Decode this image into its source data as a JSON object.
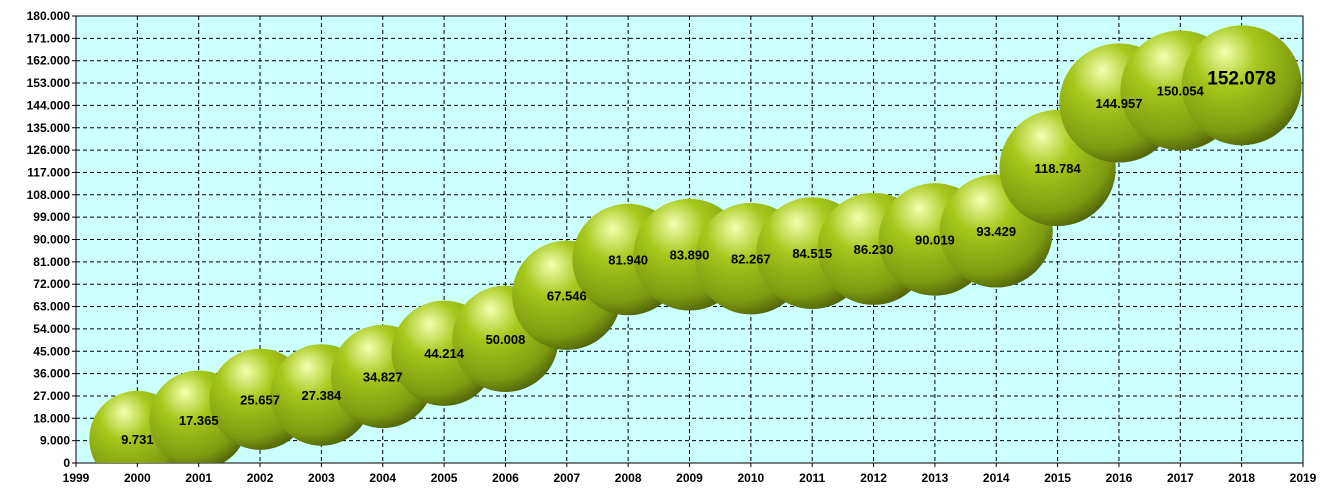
{
  "colors": {
    "plot_background": "#ccffff",
    "grid": "#000000",
    "bubble_light": "#f4ffb0",
    "bubble_mid": "#a6c81c",
    "bubble_dark": "#4b5e06"
  },
  "chart_data": {
    "type": "scatter",
    "style": "bubble",
    "title": "",
    "xlabel": "",
    "ylabel": "",
    "xlim": [
      1999,
      2019
    ],
    "ylim": [
      0,
      180000
    ],
    "grid": true,
    "legend": "none",
    "x_tick_labels": [
      "1999",
      "2000",
      "2001",
      "2002",
      "2003",
      "2004",
      "2005",
      "2006",
      "2007",
      "2008",
      "2009",
      "2010",
      "2011",
      "2012",
      "2013",
      "2014",
      "2015",
      "2016",
      "2017",
      "2018",
      "2019"
    ],
    "y_tick_labels": [
      "0",
      "9.000",
      "18.000",
      "27.000",
      "36.000",
      "45.000",
      "54.000",
      "63.000",
      "72.000",
      "81.000",
      "90.000",
      "99.000",
      "108.000",
      "117.000",
      "126.000",
      "135.000",
      "144.000",
      "153.000",
      "162.000",
      "171.000",
      "180.000"
    ],
    "x": [
      2000,
      2001,
      2002,
      2003,
      2004,
      2005,
      2006,
      2007,
      2008,
      2009,
      2010,
      2011,
      2012,
      2013,
      2014,
      2015,
      2016,
      2017,
      2018
    ],
    "y": [
      9731,
      17365,
      25657,
      27384,
      34827,
      44214,
      50008,
      67546,
      81940,
      83890,
      82267,
      84515,
      86230,
      90019,
      93429,
      118784,
      144957,
      150054,
      152078
    ],
    "data_labels": [
      "9.731",
      "17.365",
      "25.657",
      "27.384",
      "34.827",
      "44.214",
      "50.008",
      "67.546",
      "81.940",
      "83.890",
      "82.267",
      "84.515",
      "86.230",
      "90.019",
      "93.429",
      "118.784",
      "144.957",
      "150.054",
      "152.078"
    ]
  }
}
